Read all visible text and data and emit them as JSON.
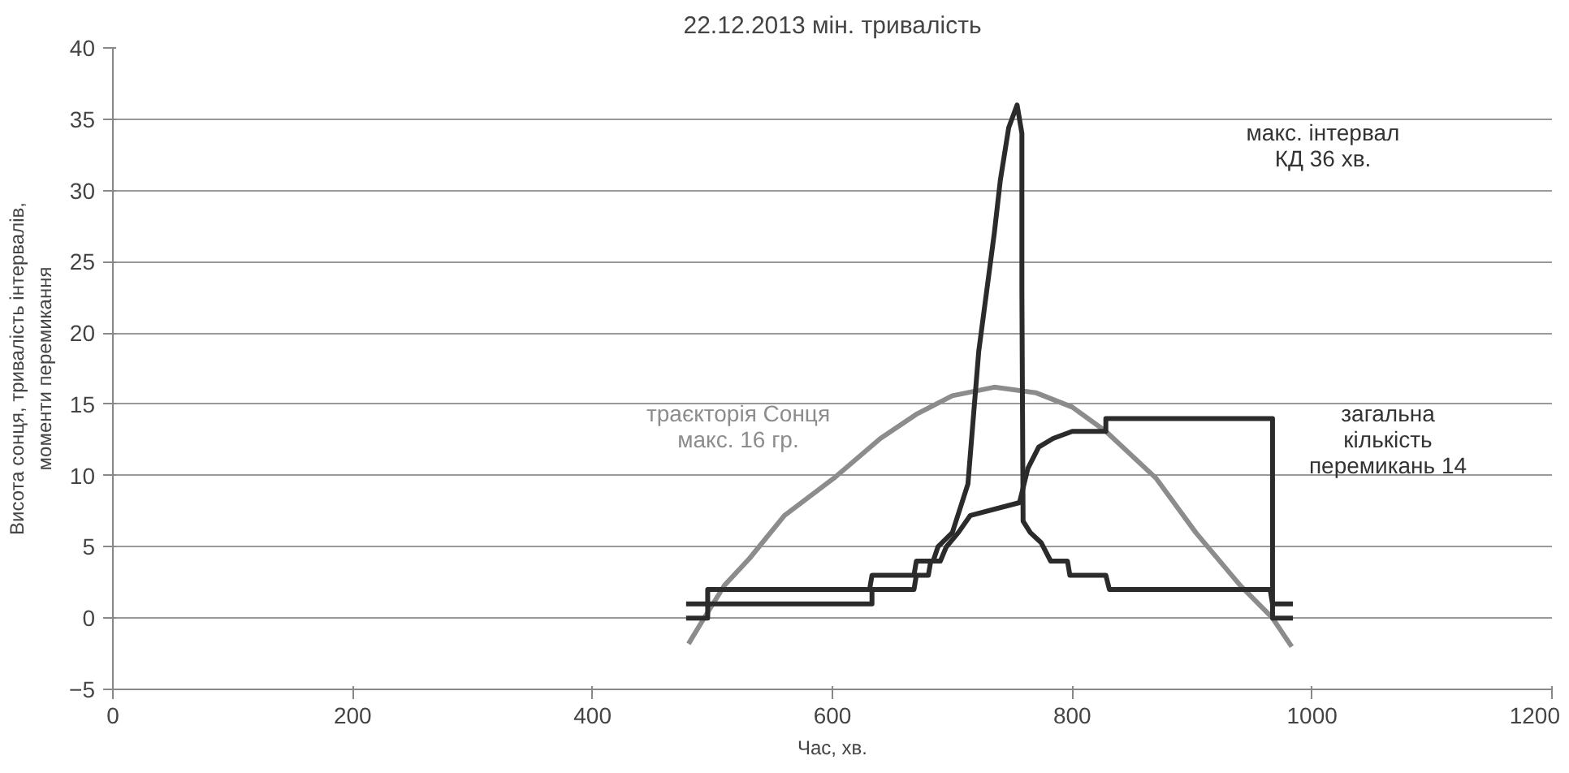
{
  "chart_data": {
    "type": "line",
    "title": "22.12.2013 мін. тривалість",
    "xlabel": "Час, хв.",
    "ylabel": "Висота сонця, тривалість інтервалів,\nмоменти перемикання",
    "series": [
      {
        "color": "#8c8c8c",
        "x": [
          480,
          493,
          510,
          531,
          560,
          601,
          640,
          670,
          700,
          735,
          770,
          800,
          828,
          870,
          903,
          940,
          967,
          983
        ],
        "values": [
          -1.8,
          0,
          2.3,
          4.2,
          7.2,
          9.8,
          12.6,
          14.3,
          15.6,
          16.2,
          15.8,
          14.8,
          13.1,
          9.8,
          6,
          2.3,
          0,
          -2
        ]
      },
      {
        "color": "#2b2b2b",
        "x": [
          478,
          496,
          496,
          631,
          633,
          668,
          670,
          684,
          688,
          700,
          713,
          722,
          735,
          740,
          747,
          754,
          758,
          758,
          759,
          765,
          774,
          782,
          796,
          798,
          828,
          831,
          965,
          967,
          984
        ],
        "values": [
          0,
          0,
          2,
          2,
          3,
          3,
          4,
          4,
          5,
          6,
          9.4,
          18.7,
          27,
          30.7,
          34.4,
          36,
          34,
          23,
          6.8,
          6,
          5.3,
          4,
          4,
          3,
          3,
          2,
          2,
          1,
          1
        ]
      },
      {
        "color": "#2b2b2b",
        "x": [
          478,
          633,
          633,
          668,
          670,
          680,
          682,
          690,
          695,
          705,
          715,
          756,
          763,
          772,
          784,
          800,
          828,
          828,
          967,
          967,
          984
        ],
        "values": [
          1,
          1,
          2,
          2,
          3,
          3,
          4,
          4,
          5,
          6,
          7.2,
          8.1,
          10.5,
          12,
          12.6,
          13.1,
          13.1,
          14,
          14,
          0,
          0
        ]
      }
    ],
    "annotations": [
      "макс. інтервал\nКД 36 хв.",
      "траєкторія Сонця\nмакс. 16 гр.",
      "загальна\nкількість\nперемикань 14"
    ],
    "xlim": [
      0,
      1200
    ],
    "xticks": [
      0,
      200,
      400,
      600,
      800,
      1000,
      1200
    ],
    "ylim": [
      -5,
      40
    ],
    "yticks": [
      -5,
      0,
      5,
      10,
      15,
      20,
      25,
      30,
      35,
      40
    ],
    "grid": "y",
    "marker": "none",
    "line_style": "solid"
  }
}
